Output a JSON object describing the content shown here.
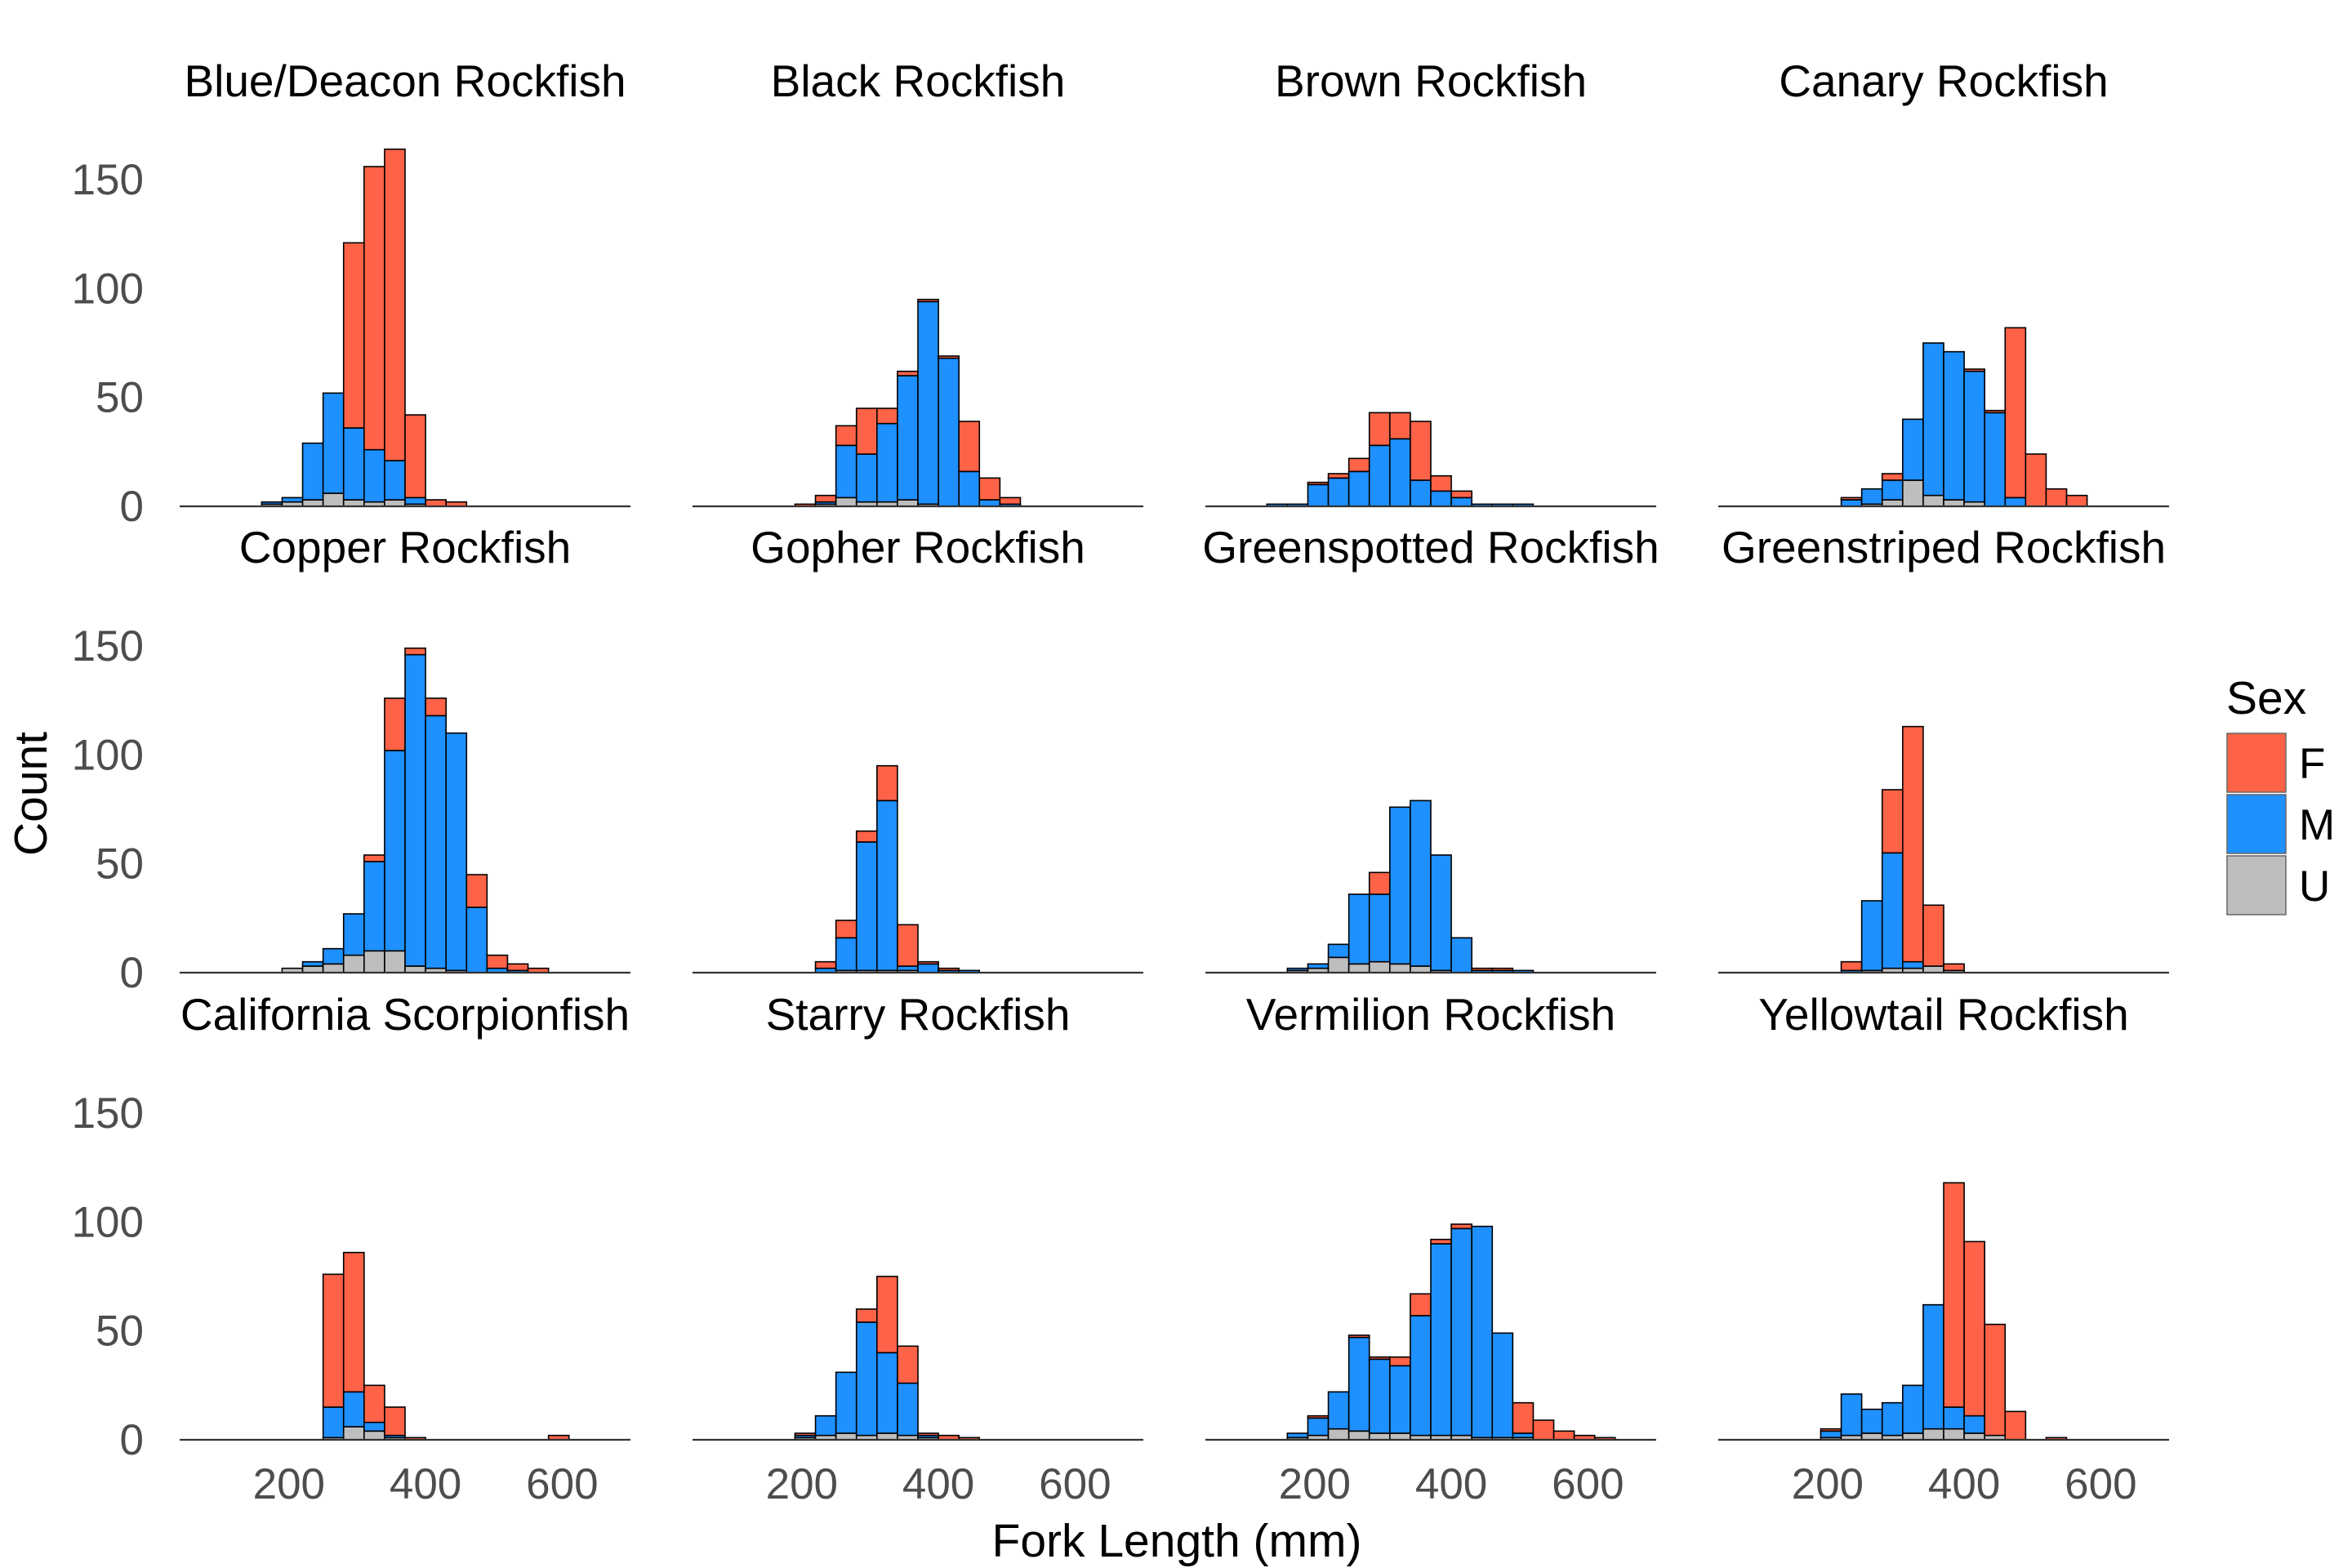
{
  "chart_data": {
    "type": "bar",
    "stacked": true,
    "facet_layout": "3 rows x 4 columns",
    "xlabel": "Fork Length (mm)",
    "ylabel": "Count",
    "xlim": [
      40,
      700
    ],
    "ylim": [
      0,
      165
    ],
    "x_ticks": [
      200,
      400,
      600
    ],
    "y_ticks": [
      0,
      50,
      100,
      150
    ],
    "bin_width": 30,
    "bin_starts": [
      40,
      70,
      100,
      130,
      160,
      190,
      220,
      250,
      280,
      310,
      340,
      370,
      400,
      430,
      460,
      490,
      520,
      550,
      580,
      610,
      640,
      670
    ],
    "grid": false,
    "legend": {
      "title": "Sex",
      "position": "right",
      "entries": [
        {
          "label": "F",
          "color": "#FF6347"
        },
        {
          "label": "M",
          "color": "#1E90FF"
        },
        {
          "label": "U",
          "color": "#BEBEBE"
        }
      ]
    },
    "stack_order": [
      "U",
      "M",
      "F"
    ],
    "panels": [
      {
        "title": "Blue/Deacon Rockfish",
        "U": [
          0,
          0,
          0,
          0,
          1,
          2,
          3,
          6,
          3,
          2,
          3,
          1,
          0,
          0,
          0,
          0,
          0,
          0,
          0,
          0,
          0,
          0
        ],
        "M": [
          0,
          0,
          0,
          0,
          1,
          2,
          26,
          46,
          33,
          24,
          18,
          3,
          0,
          0,
          0,
          0,
          0,
          0,
          0,
          0,
          0,
          0
        ],
        "F": [
          0,
          0,
          0,
          0,
          0,
          0,
          0,
          0,
          85,
          130,
          143,
          38,
          3,
          2,
          0,
          0,
          0,
          0,
          0,
          0,
          0,
          0
        ]
      },
      {
        "title": "Black Rockfish",
        "U": [
          0,
          0,
          0,
          0,
          0,
          0,
          1,
          4,
          2,
          2,
          3,
          1,
          0,
          0,
          0,
          0,
          0,
          0,
          0,
          0,
          0,
          0
        ],
        "M": [
          0,
          0,
          0,
          0,
          0,
          0,
          1,
          24,
          22,
          36,
          57,
          93,
          68,
          16,
          3,
          1,
          0,
          0,
          0,
          0,
          0,
          0
        ],
        "F": [
          0,
          0,
          0,
          0,
          0,
          1,
          3,
          9,
          21,
          7,
          2,
          1,
          1,
          23,
          10,
          3,
          0,
          0,
          0,
          0,
          0,
          0
        ]
      },
      {
        "title": "Brown Rockfish",
        "U": [
          0,
          0,
          0,
          0,
          0,
          0,
          0,
          0,
          0,
          0,
          0,
          0,
          0,
          0,
          0,
          0,
          0,
          0,
          0,
          0,
          0,
          0
        ],
        "M": [
          0,
          0,
          0,
          1,
          1,
          10,
          13,
          16,
          28,
          31,
          12,
          7,
          4,
          1,
          1,
          1,
          0,
          0,
          0,
          0,
          0,
          0
        ],
        "F": [
          0,
          0,
          0,
          0,
          0,
          1,
          2,
          6,
          15,
          12,
          27,
          7,
          3,
          0,
          0,
          0,
          0,
          0,
          0,
          0,
          0,
          0
        ]
      },
      {
        "title": "Canary Rockfish",
        "U": [
          0,
          0,
          0,
          0,
          0,
          0,
          0,
          1,
          3,
          12,
          5,
          3,
          2,
          0,
          0,
          0,
          0,
          0,
          0,
          0,
          0,
          0
        ],
        "M": [
          0,
          0,
          0,
          0,
          0,
          0,
          3,
          7,
          9,
          28,
          70,
          68,
          60,
          43,
          4,
          0,
          0,
          0,
          0,
          0,
          0,
          0
        ],
        "F": [
          0,
          0,
          0,
          0,
          0,
          0,
          1,
          0,
          3,
          0,
          0,
          0,
          1,
          1,
          78,
          24,
          8,
          5,
          0,
          0,
          0,
          0
        ]
      },
      {
        "title": "Copper Rockfish",
        "U": [
          0,
          0,
          0,
          0,
          0,
          2,
          3,
          4,
          8,
          10,
          10,
          3,
          2,
          1,
          0,
          0,
          0,
          0,
          0,
          0,
          0,
          0
        ],
        "M": [
          0,
          0,
          0,
          0,
          0,
          0,
          2,
          7,
          19,
          41,
          92,
          143,
          116,
          109,
          30,
          2,
          1,
          0,
          0,
          0,
          0,
          0
        ],
        "F": [
          0,
          0,
          0,
          0,
          0,
          0,
          0,
          0,
          0,
          3,
          24,
          3,
          8,
          0,
          15,
          6,
          3,
          2,
          0,
          0,
          0,
          0
        ]
      },
      {
        "title": "Gopher Rockfish",
        "U": [
          0,
          0,
          0,
          0,
          0,
          0,
          0,
          1,
          1,
          1,
          1,
          0,
          0,
          0,
          0,
          0,
          0,
          0,
          0,
          0,
          0,
          0
        ],
        "M": [
          0,
          0,
          0,
          0,
          0,
          0,
          2,
          15,
          59,
          78,
          2,
          4,
          1,
          1,
          0,
          0,
          0,
          0,
          0,
          0,
          0,
          0
        ],
        "F": [
          0,
          0,
          0,
          0,
          0,
          0,
          3,
          8,
          5,
          16,
          19,
          1,
          1,
          0,
          0,
          0,
          0,
          0,
          0,
          0,
          0,
          0
        ]
      },
      {
        "title": "Greenspotted Rockfish",
        "U": [
          0,
          0,
          0,
          0,
          1,
          2,
          7,
          4,
          5,
          4,
          3,
          1,
          0,
          0,
          0,
          0,
          0,
          0,
          0,
          0,
          0,
          0
        ],
        "M": [
          0,
          0,
          0,
          0,
          1,
          2,
          6,
          32,
          31,
          72,
          76,
          53,
          16,
          1,
          1,
          1,
          0,
          0,
          0,
          0,
          0,
          0
        ],
        "F": [
          0,
          0,
          0,
          0,
          0,
          0,
          0,
          0,
          10,
          0,
          0,
          0,
          0,
          1,
          1,
          0,
          0,
          0,
          0,
          0,
          0,
          0
        ]
      },
      {
        "title": "Greenstriped Rockfish",
        "U": [
          0,
          0,
          0,
          0,
          0,
          0,
          0,
          1,
          2,
          2,
          3,
          1,
          0,
          0,
          0,
          0,
          0,
          0,
          0,
          0,
          0,
          0
        ],
        "M": [
          0,
          0,
          0,
          0,
          0,
          0,
          1,
          32,
          53,
          3,
          0,
          0,
          0,
          0,
          0,
          0,
          0,
          0,
          0,
          0,
          0,
          0
        ],
        "F": [
          0,
          0,
          0,
          0,
          0,
          0,
          4,
          0,
          29,
          108,
          28,
          3,
          0,
          0,
          0,
          0,
          0,
          0,
          0,
          0,
          0,
          0
        ]
      },
      {
        "title": "California Scorpionfish",
        "U": [
          0,
          0,
          0,
          0,
          0,
          0,
          0,
          1,
          6,
          4,
          1,
          0,
          0,
          0,
          0,
          0,
          0,
          0,
          0,
          0,
          0,
          0
        ],
        "M": [
          0,
          0,
          0,
          0,
          0,
          0,
          0,
          14,
          16,
          4,
          1,
          0,
          0,
          0,
          0,
          0,
          0,
          0,
          0,
          0,
          0,
          0
        ],
        "F": [
          0,
          0,
          0,
          0,
          0,
          0,
          0,
          61,
          64,
          17,
          13,
          1,
          0,
          0,
          0,
          0,
          0,
          0,
          2,
          0,
          0,
          0
        ]
      },
      {
        "title": "Starry Rockfish",
        "U": [
          0,
          0,
          0,
          0,
          0,
          1,
          2,
          3,
          2,
          3,
          2,
          1,
          0,
          0,
          0,
          0,
          0,
          0,
          0,
          0,
          0,
          0
        ],
        "M": [
          0,
          0,
          0,
          0,
          0,
          1,
          9,
          28,
          52,
          37,
          24,
          1,
          0,
          0,
          0,
          0,
          0,
          0,
          0,
          0,
          0,
          0
        ],
        "F": [
          0,
          0,
          0,
          0,
          0,
          1,
          0,
          0,
          6,
          35,
          17,
          1,
          2,
          1,
          0,
          0,
          0,
          0,
          0,
          0,
          0,
          0
        ]
      },
      {
        "title": "Vermilion Rockfish",
        "U": [
          0,
          0,
          0,
          0,
          1,
          2,
          5,
          4,
          3,
          3,
          2,
          2,
          2,
          1,
          1,
          1,
          0,
          0,
          0,
          0,
          0,
          0
        ],
        "M": [
          0,
          0,
          0,
          0,
          2,
          8,
          17,
          43,
          34,
          31,
          55,
          88,
          95,
          97,
          48,
          2,
          0,
          0,
          0,
          0,
          0,
          0
        ],
        "F": [
          0,
          0,
          0,
          0,
          0,
          1,
          0,
          1,
          1,
          4,
          10,
          2,
          2,
          0,
          0,
          14,
          9,
          4,
          2,
          1,
          0,
          0
        ]
      },
      {
        "title": "Yellowtail Rockfish",
        "U": [
          0,
          0,
          0,
          0,
          0,
          1,
          2,
          3,
          2,
          3,
          5,
          5,
          3,
          2,
          0,
          0,
          0,
          0,
          0,
          0,
          0,
          0
        ],
        "M": [
          0,
          0,
          0,
          0,
          0,
          3,
          19,
          11,
          15,
          22,
          57,
          10,
          8,
          0,
          0,
          0,
          0,
          0,
          0,
          0,
          0,
          0
        ],
        "F": [
          0,
          0,
          0,
          0,
          0,
          1,
          0,
          0,
          0,
          0,
          0,
          103,
          80,
          51,
          13,
          0,
          1,
          0,
          0,
          0,
          0,
          0
        ]
      }
    ]
  }
}
